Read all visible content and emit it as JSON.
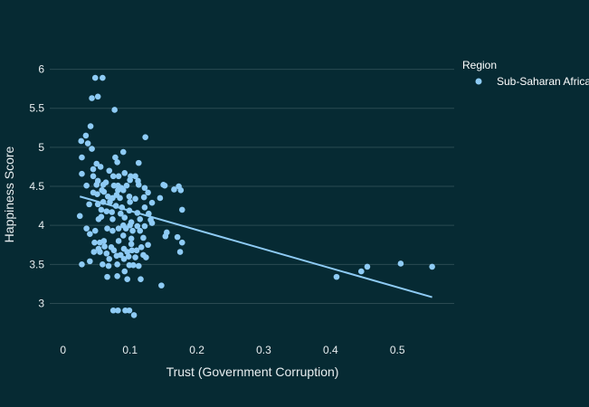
{
  "chart_data": {
    "type": "scatter",
    "xlabel": "Trust (Government Corruption)",
    "ylabel": "Happiness Score",
    "xlim": [
      -0.02,
      0.585
    ],
    "ylim": [
      2.6,
      6.25
    ],
    "x_ticks": [
      0,
      0.1,
      0.2,
      0.3,
      0.4,
      0.5
    ],
    "x_tick_labels": [
      "0",
      "0.1",
      "0.2",
      "0.3",
      "0.4",
      "0.5"
    ],
    "y_ticks": [
      3,
      3.5,
      4,
      4.5,
      5,
      5.5,
      6
    ],
    "y_tick_labels": [
      "3",
      "3.5",
      "4",
      "4.5",
      "5",
      "5.5",
      "6"
    ],
    "grid": "horizontal",
    "legend": {
      "title": "Region",
      "placement": "top-right"
    },
    "series": [
      {
        "name": "Sub-Saharan Africa",
        "color": "#8ecbf5",
        "points": [
          [
            0.048,
            5.89
          ],
          [
            0.059,
            5.89
          ],
          [
            0.052,
            5.65
          ],
          [
            0.043,
            5.63
          ],
          [
            0.077,
            5.48
          ],
          [
            0.041,
            5.27
          ],
          [
            0.123,
            5.13
          ],
          [
            0.034,
            5.15
          ],
          [
            0.027,
            5.08
          ],
          [
            0.037,
            5.05
          ],
          [
            0.043,
            4.98
          ],
          [
            0.09,
            4.94
          ],
          [
            0.028,
            4.87
          ],
          [
            0.078,
            4.87
          ],
          [
            0.081,
            4.81
          ],
          [
            0.05,
            4.79
          ],
          [
            0.113,
            4.8
          ],
          [
            0.056,
            4.75
          ],
          [
            0.045,
            4.72
          ],
          [
            0.069,
            4.7
          ],
          [
            0.028,
            4.66
          ],
          [
            0.092,
            4.67
          ],
          [
            0.045,
            4.63
          ],
          [
            0.075,
            4.63
          ],
          [
            0.083,
            4.63
          ],
          [
            0.101,
            4.63
          ],
          [
            0.108,
            4.63
          ],
          [
            0.1,
            4.58
          ],
          [
            0.112,
            4.57
          ],
          [
            0.052,
            4.57
          ],
          [
            0.064,
            4.55
          ],
          [
            0.05,
            4.52
          ],
          [
            0.06,
            4.52
          ],
          [
            0.076,
            4.51
          ],
          [
            0.082,
            4.51
          ],
          [
            0.095,
            4.51
          ],
          [
            0.113,
            4.52
          ],
          [
            0.15,
            4.52
          ],
          [
            0.152,
            4.51
          ],
          [
            0.035,
            4.51
          ],
          [
            0.087,
            4.48
          ],
          [
            0.122,
            4.48
          ],
          [
            0.058,
            4.45
          ],
          [
            0.082,
            4.45
          ],
          [
            0.166,
            4.46
          ],
          [
            0.173,
            4.5
          ],
          [
            0.176,
            4.45
          ],
          [
            0.09,
            4.45
          ],
          [
            0.061,
            4.43
          ],
          [
            0.045,
            4.42
          ],
          [
            0.127,
            4.42
          ],
          [
            0.051,
            4.4
          ],
          [
            0.08,
            4.39
          ],
          [
            0.067,
            4.37
          ],
          [
            0.099,
            4.37
          ],
          [
            0.074,
            4.35
          ],
          [
            0.085,
            4.35
          ],
          [
            0.108,
            4.34
          ],
          [
            0.121,
            4.36
          ],
          [
            0.145,
            4.35
          ],
          [
            0.06,
            4.3
          ],
          [
            0.07,
            4.3
          ],
          [
            0.1,
            4.3
          ],
          [
            0.133,
            4.29
          ],
          [
            0.039,
            4.27
          ],
          [
            0.052,
            4.27
          ],
          [
            0.079,
            4.25
          ],
          [
            0.088,
            4.23
          ],
          [
            0.122,
            4.23
          ],
          [
            0.057,
            4.2
          ],
          [
            0.099,
            4.19
          ],
          [
            0.178,
            4.2
          ],
          [
            0.065,
            4.18
          ],
          [
            0.073,
            4.17
          ],
          [
            0.111,
            4.16
          ],
          [
            0.086,
            4.15
          ],
          [
            0.128,
            4.15
          ],
          [
            0.025,
            4.12
          ],
          [
            0.057,
            4.11
          ],
          [
            0.092,
            4.1
          ],
          [
            0.053,
            4.08
          ],
          [
            0.074,
            4.08
          ],
          [
            0.115,
            4.08
          ],
          [
            0.131,
            4.07
          ],
          [
            0.102,
            4.04
          ],
          [
            0.133,
            4.03
          ],
          [
            0.09,
            4.0
          ],
          [
            0.1,
            4.0
          ],
          [
            0.122,
            3.99
          ],
          [
            0.111,
            3.99
          ],
          [
            0.035,
            3.96
          ],
          [
            0.066,
            3.96
          ],
          [
            0.083,
            3.96
          ],
          [
            0.094,
            3.96
          ],
          [
            0.048,
            3.93
          ],
          [
            0.074,
            3.93
          ],
          [
            0.104,
            3.93
          ],
          [
            0.115,
            3.93
          ],
          [
            0.155,
            3.91
          ],
          [
            0.04,
            3.89
          ],
          [
            0.09,
            3.87
          ],
          [
            0.153,
            3.86
          ],
          [
            0.171,
            3.85
          ],
          [
            0.12,
            3.84
          ],
          [
            0.102,
            3.83
          ],
          [
            0.061,
            3.8
          ],
          [
            0.083,
            3.8
          ],
          [
            0.047,
            3.78
          ],
          [
            0.055,
            3.78
          ],
          [
            0.178,
            3.78
          ],
          [
            0.102,
            3.76
          ],
          [
            0.127,
            3.75
          ],
          [
            0.062,
            3.73
          ],
          [
            0.072,
            3.72
          ],
          [
            0.117,
            3.72
          ],
          [
            0.053,
            3.7
          ],
          [
            0.091,
            3.7
          ],
          [
            0.076,
            3.68
          ],
          [
            0.103,
            3.68
          ],
          [
            0.11,
            3.68
          ],
          [
            0.046,
            3.66
          ],
          [
            0.055,
            3.66
          ],
          [
            0.096,
            3.66
          ],
          [
            0.175,
            3.66
          ],
          [
            0.065,
            3.64
          ],
          [
            0.086,
            3.62
          ],
          [
            0.12,
            3.62
          ],
          [
            0.08,
            3.61
          ],
          [
            0.098,
            3.6
          ],
          [
            0.108,
            3.59
          ],
          [
            0.124,
            3.59
          ],
          [
            0.069,
            3.57
          ],
          [
            0.091,
            3.57
          ],
          [
            0.04,
            3.54
          ],
          [
            0.028,
            3.5
          ],
          [
            0.059,
            3.5
          ],
          [
            0.081,
            3.5
          ],
          [
            0.099,
            3.49
          ],
          [
            0.105,
            3.49
          ],
          [
            0.068,
            3.48
          ],
          [
            0.113,
            3.48
          ],
          [
            0.092,
            3.41
          ],
          [
            0.081,
            3.35
          ],
          [
            0.066,
            3.34
          ],
          [
            0.116,
            3.31
          ],
          [
            0.096,
            3.31
          ],
          [
            0.147,
            3.23
          ],
          [
            0.409,
            3.34
          ],
          [
            0.446,
            3.41
          ],
          [
            0.455,
            3.47
          ],
          [
            0.505,
            3.51
          ],
          [
            0.552,
            3.47
          ],
          [
            0.075,
            2.91
          ],
          [
            0.082,
            2.91
          ],
          [
            0.093,
            2.91
          ],
          [
            0.099,
            2.91
          ],
          [
            0.106,
            2.85
          ]
        ],
        "trendline": {
          "x": [
            0.025,
            0.552
          ],
          "y": [
            4.37,
            3.08
          ]
        }
      }
    ]
  }
}
